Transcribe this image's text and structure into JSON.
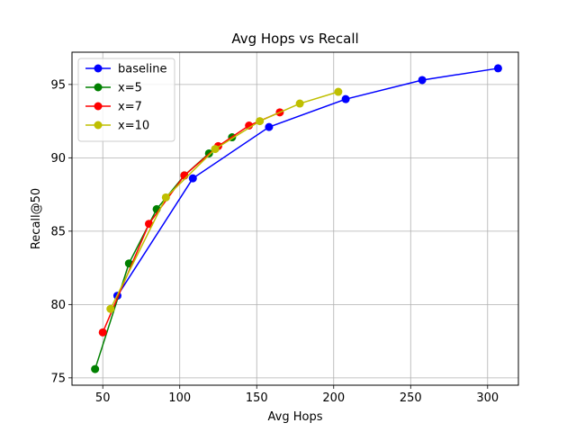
{
  "chart_data": {
    "type": "line",
    "title": "Avg Hops vs Recall",
    "xlabel": "Avg Hops",
    "ylabel": "Recall@50",
    "xlim": [
      30,
      320
    ],
    "ylim": [
      74.5,
      97.2
    ],
    "xticks": [
      50,
      100,
      150,
      200,
      250,
      300
    ],
    "yticks": [
      75,
      80,
      85,
      90,
      95
    ],
    "grid": true,
    "legend_position": "top-left",
    "series": [
      {
        "name": "baseline",
        "color": "#0000ff",
        "x": [
          59.5,
          108.5,
          158.0,
          207.8,
          257.5,
          306.8
        ],
        "y": [
          80.6,
          88.6,
          92.1,
          94.0,
          95.3,
          96.1
        ]
      },
      {
        "name": "x=5",
        "color": "#008000",
        "x": [
          45.0,
          67.0,
          85.0,
          103.0,
          119.0,
          134.0
        ],
        "y": [
          75.6,
          82.8,
          86.5,
          88.8,
          90.3,
          91.4
        ]
      },
      {
        "name": "x=7",
        "color": "#ff0000",
        "x": [
          50.0,
          80.0,
          103.0,
          125.0,
          145.0,
          165.0
        ],
        "y": [
          78.1,
          85.5,
          88.8,
          90.8,
          92.2,
          93.1
        ]
      },
      {
        "name": "x=10",
        "color": "#bfbf00",
        "x": [
          55.0,
          91.0,
          123.0,
          152.0,
          178.0,
          203.0
        ],
        "y": [
          79.7,
          87.3,
          90.6,
          92.5,
          93.7,
          94.5
        ]
      }
    ]
  }
}
